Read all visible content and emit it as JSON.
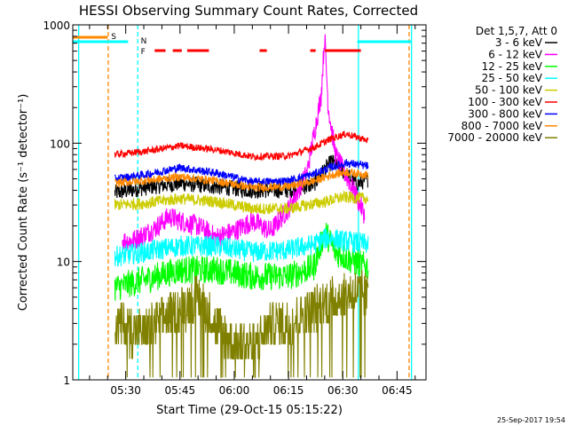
{
  "chart_data": {
    "type": "line",
    "title": "HESSI Observing Summary Count Rates, Corrected",
    "xlabel": "Start Time (29-Oct-15 05:15:22)",
    "ylabel": "Corrected Count Rate (s⁻¹ detector⁻¹)",
    "yscale": "log",
    "ylim": [
      1,
      1000
    ],
    "xlim": [
      "05:15:22",
      "06:53:00"
    ],
    "x_ticks": [
      "05:30",
      "05:45",
      "06:00",
      "06:15",
      "06:30",
      "06:45"
    ],
    "y_ticks": [
      "1",
      "10",
      "100",
      "1000"
    ],
    "data_window": [
      "05:27:00",
      "06:37:00"
    ],
    "legend_title": "Det 1,5,7, Att 0",
    "legend_position": "right",
    "series": [
      {
        "name": "3 - 6 keV",
        "color": "#000000",
        "x": [
          "05:27",
          "05:35",
          "05:45",
          "05:55",
          "06:05",
          "06:15",
          "06:22",
          "06:25",
          "06:27",
          "06:30",
          "06:34",
          "06:37"
        ],
        "y": [
          38,
          42,
          46,
          43,
          40,
          40,
          45,
          60,
          70,
          58,
          45,
          50
        ]
      },
      {
        "name": "6 - 12 keV",
        "color": "#ff00ff",
        "x": [
          "05:29",
          "05:32",
          "05:38",
          "05:42",
          "05:45",
          "05:50",
          "05:55",
          "06:00",
          "06:05",
          "06:10",
          "06:15",
          "06:20",
          "06:24",
          "06:25",
          "06:26",
          "06:28",
          "06:30",
          "06:33",
          "06:36"
        ],
        "y": [
          15,
          15,
          19,
          24,
          22,
          20,
          16,
          18,
          22,
          18,
          28,
          55,
          250,
          800,
          200,
          80,
          60,
          40,
          25
        ]
      },
      {
        "name": "12 - 25 keV",
        "color": "#00ff00",
        "x": [
          "05:27",
          "05:35",
          "05:45",
          "05:55",
          "06:05",
          "06:15",
          "06:22",
          "06:25",
          "06:28",
          "06:33",
          "06:37"
        ],
        "y": [
          6,
          7,
          8.5,
          8.5,
          7.5,
          7.5,
          9,
          18,
          12,
          10,
          9
        ]
      },
      {
        "name": "25 - 50 keV",
        "color": "#00ffff",
        "x": [
          "05:27",
          "05:35",
          "05:45",
          "05:55",
          "06:05",
          "06:15",
          "06:22",
          "06:26",
          "06:30",
          "06:37"
        ],
        "y": [
          11,
          12,
          13.5,
          13.5,
          12,
          12.5,
          14,
          16,
          15,
          14
        ]
      },
      {
        "name": "50 - 100 keV",
        "color": "#cccc00",
        "x": [
          "05:27",
          "05:35",
          "05:45",
          "05:55",
          "06:05",
          "06:15",
          "06:25",
          "06:30",
          "06:37"
        ],
        "y": [
          30,
          31,
          34,
          32,
          28,
          28,
          32,
          35,
          34
        ]
      },
      {
        "name": "100 - 300 keV",
        "color": "#ff0000",
        "x": [
          "05:27",
          "05:35",
          "05:45",
          "05:55",
          "06:05",
          "06:15",
          "06:22",
          "06:27",
          "06:31",
          "06:37"
        ],
        "y": [
          80,
          85,
          95,
          88,
          77,
          78,
          92,
          110,
          120,
          105
        ]
      },
      {
        "name": "300 - 800 keV",
        "color": "#0000ff",
        "x": [
          "05:27",
          "05:35",
          "05:45",
          "05:55",
          "06:05",
          "06:15",
          "06:22",
          "06:27",
          "06:31",
          "06:37"
        ],
        "y": [
          50,
          54,
          62,
          56,
          47,
          48,
          55,
          63,
          68,
          64
        ]
      },
      {
        "name": "800 - 7000 keV",
        "color": "#ff8800",
        "x": [
          "05:27",
          "05:35",
          "05:45",
          "05:55",
          "06:05",
          "06:15",
          "06:22",
          "06:27",
          "06:31",
          "06:37"
        ],
        "y": [
          46,
          48,
          52,
          48,
          42,
          43,
          48,
          54,
          57,
          54
        ]
      },
      {
        "name": "7000 - 20000 keV",
        "color": "#808000",
        "x": [
          "05:27",
          "05:35",
          "05:45",
          "05:50",
          "05:55",
          "06:00",
          "06:05",
          "06:10",
          "06:15",
          "06:22",
          "06:28",
          "06:34",
          "06:37"
        ],
        "y": [
          3,
          2.5,
          4,
          5,
          3,
          2,
          2,
          3,
          3,
          4,
          5,
          5.5,
          5
        ]
      }
    ],
    "flags": [
      {
        "label": "S",
        "color": "#ff8800"
      },
      {
        "label": "N",
        "color": "#00ffff"
      },
      {
        "label": "F",
        "color": "#ff0000"
      }
    ],
    "flag_intervals": {
      "S": [
        [
          "05:15:22",
          "05:25:00"
        ]
      ],
      "N": [
        [
          "05:15:22",
          "05:30:40"
        ],
        [
          "06:34:00",
          "06:49:00"
        ]
      ],
      "F": [
        [
          "05:38:00",
          "05:41:00"
        ],
        [
          "05:43:00",
          "05:45:30"
        ],
        [
          "05:47:00",
          "05:53:00"
        ],
        [
          "06:07:00",
          "06:09:00"
        ],
        [
          "06:21:00",
          "06:22:30"
        ],
        [
          "06:25:00",
          "06:35:00"
        ]
      ]
    },
    "vlines": [
      {
        "t": "05:17:00",
        "color": "#00ffff",
        "style": "solid"
      },
      {
        "t": "05:25:10",
        "color": "#ff8800",
        "style": "dashed"
      },
      {
        "t": "05:33:20",
        "color": "#00ffff",
        "style": "dashed"
      },
      {
        "t": "06:34:20",
        "color": "#00ffff",
        "style": "solid"
      },
      {
        "t": "06:48:20",
        "color": "#ff8800",
        "style": "dashed"
      },
      {
        "t": "06:49:00",
        "color": "#00ffff",
        "style": "solid"
      }
    ]
  },
  "footer": {
    "timestamp": "25-Sep-2017 19:54"
  }
}
